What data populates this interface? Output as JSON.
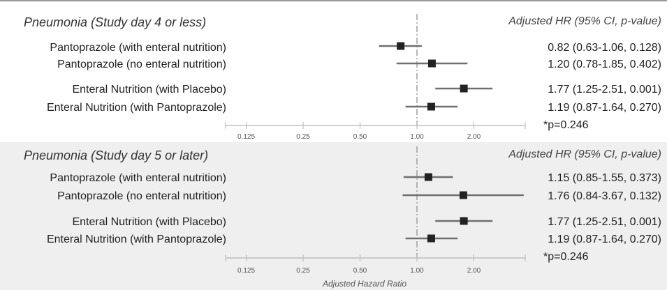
{
  "chart_data": [
    {
      "type": "forest",
      "title": "Pneumonia (Study day 4 or less)",
      "column_header": "Adjusted HR (95% CI, p-value)",
      "x_scale": "log2",
      "xlim": [
        0.125,
        2.8
      ],
      "x_ticks": [
        "0.125",
        "0.25",
        "0.50",
        "1.00",
        "2.00"
      ],
      "reference_line": 1.0,
      "rows": [
        {
          "label": "Pantoprazole (with enteral nutrition)",
          "hr": 0.82,
          "lo": 0.63,
          "hi": 1.06,
          "text": "0.82 (0.63-1.06, 0.128)"
        },
        {
          "label": "Pantoprazole (no enteral nutrition)",
          "hr": 1.2,
          "lo": 0.78,
          "hi": 1.85,
          "text": "1.20 (0.78-1.85, 0.402)"
        },
        {
          "label": "Enteral Nutrition (with Placebo)",
          "hr": 1.77,
          "lo": 1.25,
          "hi": 2.51,
          "text": "1.77 (1.25-2.51, 0.001)"
        },
        {
          "label": "Enteral Nutrition (with Pantoprazole)",
          "hr": 1.19,
          "lo": 0.87,
          "hi": 1.64,
          "text": "1.19 (0.87-1.64, 0.270)"
        }
      ],
      "note": "*p=0.246"
    },
    {
      "type": "forest",
      "title": "Pneumonia (Study day 5 or later)",
      "column_header": "Adjusted HR (95% CI, p-value)",
      "x_scale": "log2",
      "xlim": [
        0.125,
        2.8
      ],
      "x_ticks": [
        "0.125",
        "0.25",
        "0.50",
        "1.00",
        "2.00"
      ],
      "xlabel": "Adjusted Hazard Ratio",
      "reference_line": 1.0,
      "rows": [
        {
          "label": "Pantoprazole (with enteral nutrition)",
          "hr": 1.15,
          "lo": 0.85,
          "hi": 1.55,
          "text": "1.15 (0.85-1.55, 0.373)"
        },
        {
          "label": "Pantoprazole (no enteral nutrition)",
          "hr": 1.76,
          "lo": 0.84,
          "hi": 3.67,
          "text": "1.76 (0.84-3.67, 0.132)"
        },
        {
          "label": "Enteral Nutrition (with Placebo)",
          "hr": 1.77,
          "lo": 1.25,
          "hi": 2.51,
          "text": "1.77 (1.25-2.51, 0.001)"
        },
        {
          "label": "Enteral Nutrition (with Pantoprazole)",
          "hr": 1.19,
          "lo": 0.87,
          "hi": 1.64,
          "text": "1.19 (0.87-1.64, 0.270)"
        }
      ],
      "note": "*p=0.246"
    }
  ],
  "colors": {
    "panel_1_background": "#ffffff",
    "panel_2_background": "#efefef",
    "marker": "#222222",
    "ci_line": "#6f6f6f",
    "axis": "#b5b5b5",
    "reference_line": "#9a9a9a"
  }
}
